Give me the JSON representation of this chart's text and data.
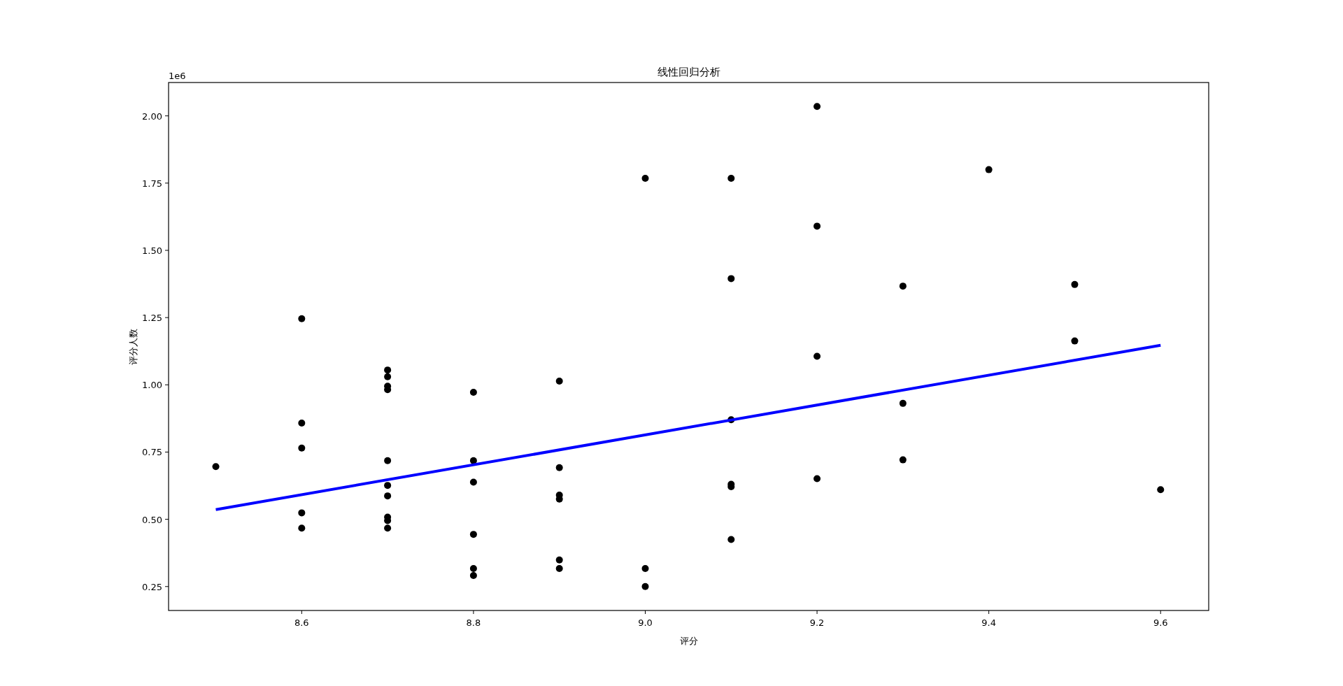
{
  "chart_data": {
    "type": "scatter",
    "title": "线性回归分析",
    "xlabel": "评分",
    "ylabel": "评分人数",
    "annotations": [
      "1e6"
    ],
    "xlim": [
      8.445,
      9.656
    ],
    "ylim": [
      0.161,
      2.124
    ],
    "xticks": [
      {
        "value": 8.6,
        "label": "8.6"
      },
      {
        "value": 8.8,
        "label": "8.8"
      },
      {
        "value": 9.0,
        "label": "9.0"
      },
      {
        "value": 9.2,
        "label": "9.2"
      },
      {
        "value": 9.4,
        "label": "9.4"
      },
      {
        "value": 9.6,
        "label": "9.6"
      }
    ],
    "yticks": [
      {
        "value": 0.25,
        "label": "0.25"
      },
      {
        "value": 0.5,
        "label": "0.50"
      },
      {
        "value": 0.75,
        "label": "0.75"
      },
      {
        "value": 1.0,
        "label": "1.00"
      },
      {
        "value": 1.25,
        "label": "1.25"
      },
      {
        "value": 1.5,
        "label": "1.50"
      },
      {
        "value": 1.75,
        "label": "1.75"
      },
      {
        "value": 2.0,
        "label": "2.00"
      }
    ],
    "grid": false,
    "series": [
      {
        "color": "#000000",
        "marker": "circle",
        "x": [
          8.5,
          8.6,
          8.6,
          8.6,
          8.6,
          8.6,
          8.7,
          8.7,
          8.7,
          8.7,
          8.7,
          8.7,
          8.7,
          8.7,
          8.7,
          8.7,
          8.8,
          8.8,
          8.8,
          8.8,
          8.8,
          8.8,
          8.9,
          8.9,
          8.9,
          8.9,
          8.9,
          8.9,
          9.0,
          9.0,
          9.0,
          9.1,
          9.1,
          9.1,
          9.1,
          9.1,
          9.1,
          9.2,
          9.2,
          9.2,
          9.2,
          9.3,
          9.3,
          9.3,
          9.4,
          9.5,
          9.5,
          9.6
        ],
        "values": [
          0.696,
          1.246,
          0.858,
          0.765,
          0.524,
          0.467,
          1.055,
          1.03,
          0.995,
          0.982,
          0.718,
          0.626,
          0.587,
          0.508,
          0.495,
          0.467,
          0.972,
          0.718,
          0.638,
          0.444,
          0.317,
          0.291,
          1.014,
          0.692,
          0.59,
          0.575,
          0.349,
          0.317,
          1.768,
          0.317,
          0.25,
          1.768,
          1.395,
          0.87,
          0.63,
          0.621,
          0.425,
          2.035,
          1.59,
          1.106,
          0.651,
          1.367,
          0.931,
          0.721,
          1.8,
          1.373,
          1.163,
          0.61
        ]
      },
      {
        "type": "line",
        "color": "#0000ff",
        "x": [
          8.5,
          9.6
        ],
        "values": [
          0.536,
          1.147
        ]
      }
    ]
  }
}
